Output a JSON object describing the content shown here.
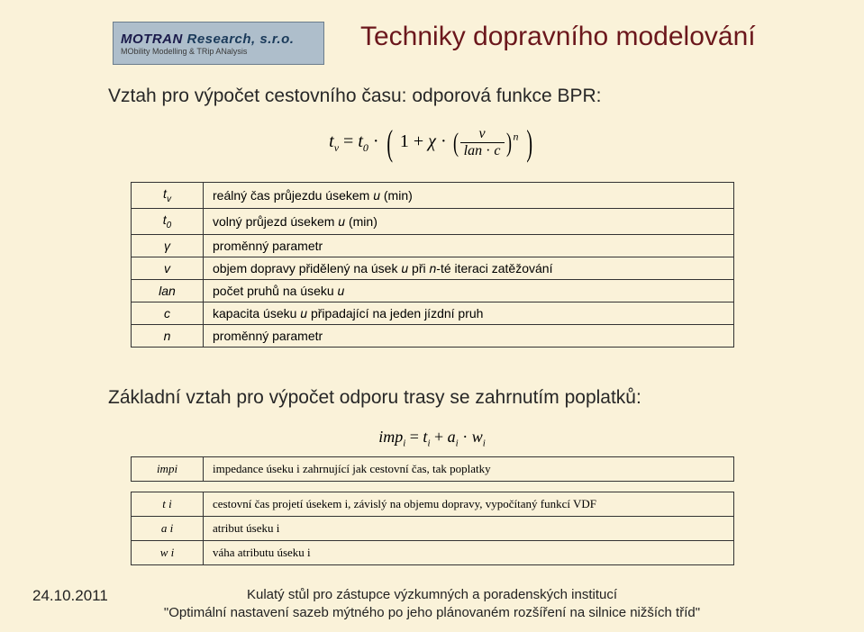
{
  "logo": {
    "name_a": "MOTRAN",
    "name_b": "Research, s.r.o.",
    "sub": "MObility Modelling & TRip ANalysis"
  },
  "title": "Techniky dopravního modelování",
  "subtitle": "Vztah pro výpočet cestovního času: odporová funkce BPR:",
  "formula1": {
    "lhs_base": "t",
    "lhs_sub": "v",
    "eq": "=",
    "t0_base": "t",
    "t0_sub": "0",
    "dot": "·",
    "one": "1",
    "plus": "+",
    "chi": "χ",
    "frac_num": "v",
    "frac_den_a": "lan",
    "frac_den_dot": "·",
    "frac_den_b": "c",
    "exp": "n"
  },
  "table1": [
    {
      "sym_html": "t<span class='subsc'>v</span>",
      "desc_html": "reálný čas průjezdu úsekem <span class='it'>u</span> (min)"
    },
    {
      "sym_html": "t<span class='subsc'>0</span>",
      "desc_html": "volný průjezd úsekem <span class='it'>u</span> (min)"
    },
    {
      "sym_html": "γ",
      "desc_html": "proměnný parametr"
    },
    {
      "sym_html": "v",
      "desc_html": "objem dopravy přidělený na úsek <span class='it'>u</span> při <span class='it'>n</span>-té iteraci zatěžování"
    },
    {
      "sym_html": "lan",
      "desc_html": "počet pruhů na úseku <span class='it'>u</span>"
    },
    {
      "sym_html": "c",
      "desc_html": "kapacita úseku <span class='it'>u</span> připadající na jeden jízdní pruh"
    },
    {
      "sym_html": "n",
      "desc_html": "proměnný parametr"
    }
  ],
  "section2": "Základní vztah pro výpočet odporu trasy se zahrnutím poplatků:",
  "formula2": {
    "imp": "imp",
    "i": "i",
    "eq": "=",
    "t": "t",
    "plus": "+",
    "a": "a",
    "dot": "·",
    "w": "w"
  },
  "table2a": [
    {
      "sym_html": "imp<span class='sub'>i</span>",
      "desc": "impedance úseku i zahrnující jak cestovní čas, tak poplatky"
    }
  ],
  "table2b": [
    {
      "sym_html": "t <span class='sub'>i</span>",
      "desc": "cestovní čas projetí úsekem i, závislý na objemu dopravy, vypočítaný funkcí VDF"
    },
    {
      "sym_html": "a <span class='sub'>i</span>",
      "desc": "atribut úseku i"
    },
    {
      "sym_html": "w <span class='sub'>i</span>",
      "desc": "váha atributu úseku i"
    }
  ],
  "date": "24.10.2011",
  "footer_line1": "Kulatý stůl pro zástupce výzkumných a poradenských institucí",
  "footer_line2": "\"Optimální nastavení sazeb mýtného po jeho plánovaném rozšíření na silnice nižších tříd\""
}
